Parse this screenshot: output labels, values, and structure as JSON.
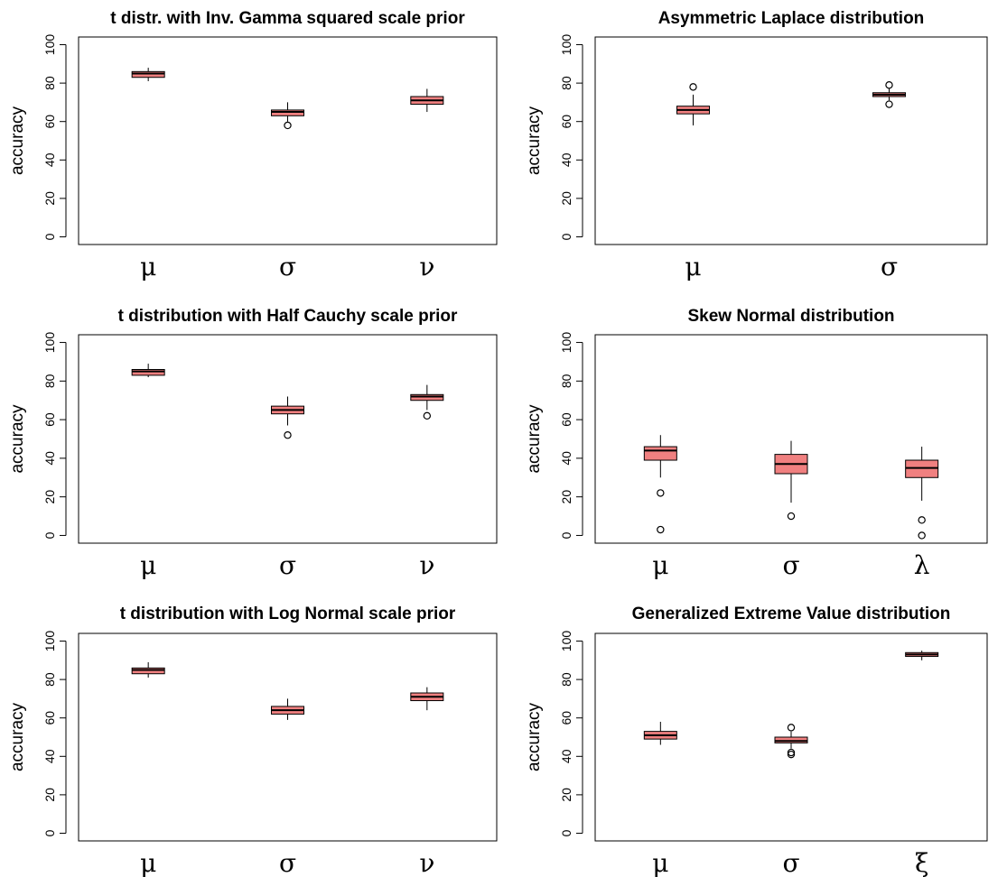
{
  "chart_data": [
    {
      "type": "boxplot",
      "title": "t distr. with Inv. Gamma squared scale prior",
      "ylabel": "accuracy",
      "ylim": [
        0,
        100
      ],
      "yticks": [
        0,
        20,
        40,
        60,
        80,
        100
      ],
      "categories": [
        "μ",
        "σ",
        "ν"
      ],
      "box_color": "#f08080",
      "boxes": [
        {
          "whisker_low": 81,
          "q1": 83,
          "median": 85,
          "q3": 86,
          "whisker_high": 88,
          "outliers": []
        },
        {
          "whisker_low": 60,
          "q1": 63,
          "median": 65,
          "q3": 66,
          "whisker_high": 70,
          "outliers": [
            58
          ]
        },
        {
          "whisker_low": 65,
          "q1": 69,
          "median": 71,
          "q3": 73,
          "whisker_high": 77,
          "outliers": []
        }
      ]
    },
    {
      "type": "boxplot",
      "title": "Asymmetric Laplace distribution",
      "ylabel": "accuracy",
      "ylim": [
        0,
        100
      ],
      "yticks": [
        0,
        20,
        40,
        60,
        80,
        100
      ],
      "categories": [
        "μ",
        "σ"
      ],
      "box_color": "#f08080",
      "boxes": [
        {
          "whisker_low": 58,
          "q1": 64,
          "median": 66,
          "q3": 68,
          "whisker_high": 74,
          "outliers": [
            78
          ]
        },
        {
          "whisker_low": 71,
          "q1": 73,
          "median": 74,
          "q3": 75,
          "whisker_high": 77,
          "outliers": [
            79,
            69
          ]
        }
      ]
    },
    {
      "type": "boxplot",
      "title": "t distribution with Half Cauchy scale prior",
      "ylabel": "accuracy",
      "ylim": [
        0,
        100
      ],
      "yticks": [
        0,
        20,
        40,
        60,
        80,
        100
      ],
      "categories": [
        "μ",
        "σ",
        "ν"
      ],
      "box_color": "#f08080",
      "boxes": [
        {
          "whisker_low": 82,
          "q1": 83,
          "median": 85,
          "q3": 86,
          "whisker_high": 89,
          "outliers": []
        },
        {
          "whisker_low": 57,
          "q1": 63,
          "median": 65,
          "q3": 67,
          "whisker_high": 72,
          "outliers": [
            52
          ]
        },
        {
          "whisker_low": 65,
          "q1": 70,
          "median": 72,
          "q3": 73,
          "whisker_high": 78,
          "outliers": [
            62
          ]
        }
      ]
    },
    {
      "type": "boxplot",
      "title": "Skew Normal distribution",
      "ylabel": "accuracy",
      "ylim": [
        0,
        100
      ],
      "yticks": [
        0,
        20,
        40,
        60,
        80,
        100
      ],
      "categories": [
        "μ",
        "σ",
        "λ"
      ],
      "box_color": "#f08080",
      "boxes": [
        {
          "whisker_low": 30,
          "q1": 39,
          "median": 44,
          "q3": 46,
          "whisker_high": 52,
          "outliers": [
            22,
            3
          ]
        },
        {
          "whisker_low": 17,
          "q1": 32,
          "median": 37,
          "q3": 42,
          "whisker_high": 49,
          "outliers": [
            10
          ]
        },
        {
          "whisker_low": 18,
          "q1": 30,
          "median": 35,
          "q3": 39,
          "whisker_high": 46,
          "outliers": [
            8,
            0
          ]
        }
      ]
    },
    {
      "type": "boxplot",
      "title": "t distribution with Log Normal scale prior",
      "ylabel": "accuracy",
      "ylim": [
        0,
        100
      ],
      "yticks": [
        0,
        20,
        40,
        60,
        80,
        100
      ],
      "categories": [
        "μ",
        "σ",
        "ν"
      ],
      "box_color": "#f08080",
      "boxes": [
        {
          "whisker_low": 81,
          "q1": 83,
          "median": 85,
          "q3": 86,
          "whisker_high": 89,
          "outliers": []
        },
        {
          "whisker_low": 59,
          "q1": 62,
          "median": 64,
          "q3": 66,
          "whisker_high": 70,
          "outliers": []
        },
        {
          "whisker_low": 64,
          "q1": 69,
          "median": 71,
          "q3": 73,
          "whisker_high": 76,
          "outliers": []
        }
      ]
    },
    {
      "type": "boxplot",
      "title": "Generalized Extreme Value distribution",
      "ylabel": "accuracy",
      "ylim": [
        0,
        100
      ],
      "yticks": [
        0,
        20,
        40,
        60,
        80,
        100
      ],
      "categories": [
        "μ",
        "σ",
        "ξ"
      ],
      "box_color": "#f08080",
      "boxes": [
        {
          "whisker_low": 46,
          "q1": 49,
          "median": 51,
          "q3": 53,
          "whisker_high": 58,
          "outliers": []
        },
        {
          "whisker_low": 44,
          "q1": 47,
          "median": 48,
          "q3": 50,
          "whisker_high": 53,
          "outliers": [
            55,
            42,
            41
          ]
        },
        {
          "whisker_low": 90,
          "q1": 92,
          "median": 93,
          "q3": 94,
          "whisker_high": 95,
          "outliers": []
        }
      ]
    }
  ]
}
